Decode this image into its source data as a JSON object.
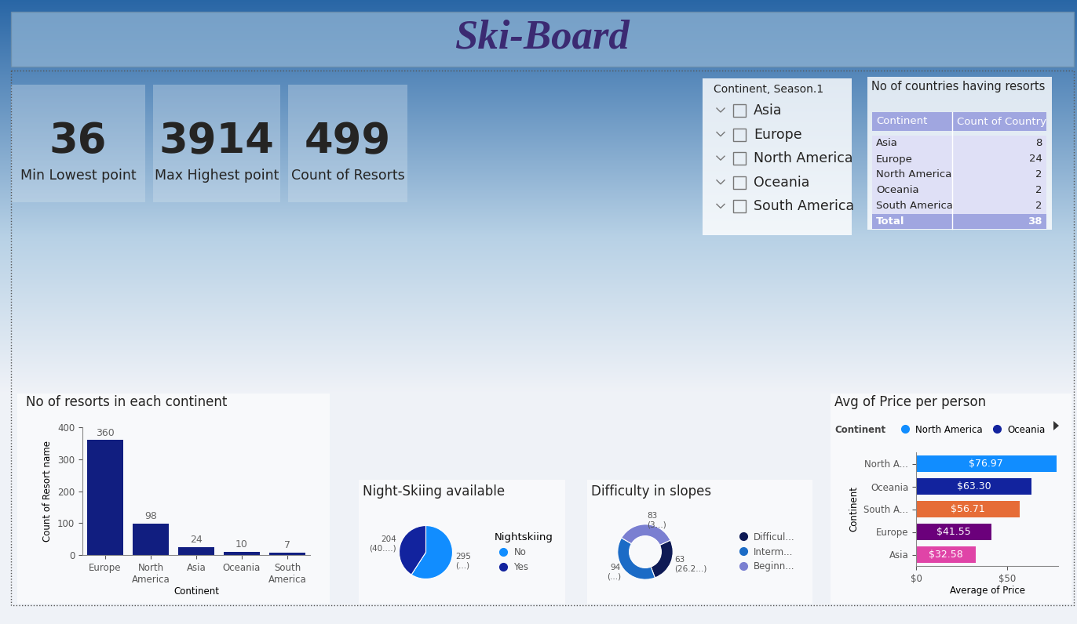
{
  "title": "Ski-Board",
  "cards": [
    {
      "value": 36,
      "label": "Min Lowest point"
    },
    {
      "value": 3914,
      "label": "Max Highest point"
    },
    {
      "value": 499,
      "label": "Count of Resorts"
    }
  ],
  "slicer": {
    "title": "Continent, Season.1",
    "items": [
      "Asia",
      "Europe",
      "North America",
      "Oceania",
      "South America"
    ]
  },
  "table": {
    "title": "No of countries having resorts",
    "columns": [
      "Continent",
      "Count of Country"
    ],
    "rows": [
      [
        "Asia",
        8
      ],
      [
        "Europe",
        24
      ],
      [
        "North America",
        2
      ],
      [
        "Oceania",
        2
      ],
      [
        "South America",
        2
      ]
    ],
    "total": [
      "Total",
      38
    ]
  },
  "chart_data": [
    {
      "type": "bar",
      "title": "No of resorts in each continent",
      "categories": [
        "Europe",
        "North America",
        "Asia",
        "Oceania",
        "South America"
      ],
      "values": [
        360,
        98,
        24,
        10,
        7
      ],
      "color": "#111e80",
      "xlabel": "Continent",
      "ylabel": "Count of Resort name",
      "ylim": [
        0,
        400
      ],
      "yticks": [
        0,
        100,
        200,
        300,
        400
      ],
      "grid": false,
      "data_labels": true
    },
    {
      "type": "pie",
      "title": "Night-Skiing available",
      "categories": [
        "No",
        "Yes"
      ],
      "values": [
        295,
        204
      ],
      "value_labels": [
        "295 (...)",
        "204 (40....)"
      ],
      "colors": [
        "#118dff",
        "#12239e"
      ],
      "legend_title": "Nightskiing",
      "legend": "right",
      "data_labels": true
    },
    {
      "type": "donut",
      "title": "Difficulty in slopes",
      "categories": [
        "Difficul...",
        "Interm...",
        "Beginn..."
      ],
      "values": [
        63,
        94,
        83
      ],
      "value_labels": [
        "63 (26.2...)",
        "94 (...)",
        "83 (3...)"
      ],
      "colors": [
        "#0e1a55",
        "#1b6bc6",
        "#7a7fd1"
      ],
      "legend": "right",
      "data_labels": true
    },
    {
      "type": "bar",
      "orientation": "horizontal",
      "title": "Avg of Price per person",
      "categories": [
        "North A...",
        "Oceania",
        "South A...",
        "Europe",
        "Asia"
      ],
      "values": [
        76.97,
        63.3,
        56.71,
        41.55,
        32.58
      ],
      "value_labels": [
        "$76.97",
        "$63.30",
        "$56.71",
        "$41.55",
        "$32.58"
      ],
      "colors": [
        "#118dff",
        "#12239e",
        "#e66c37",
        "#6b007b",
        "#e044a7"
      ],
      "xlabel": "Average of Price",
      "ylabel": "Continent",
      "xlim": [
        0,
        78
      ],
      "xticks": [
        {
          "value": 0,
          "label": "$0"
        },
        {
          "value": 50,
          "label": "$50"
        }
      ],
      "data_labels": true,
      "legend_title": "Continent",
      "legend_entries": [
        {
          "name": "North America",
          "color": "#118dff"
        },
        {
          "name": "Oceania",
          "color": "#12239e"
        }
      ],
      "legend": "top"
    }
  ]
}
